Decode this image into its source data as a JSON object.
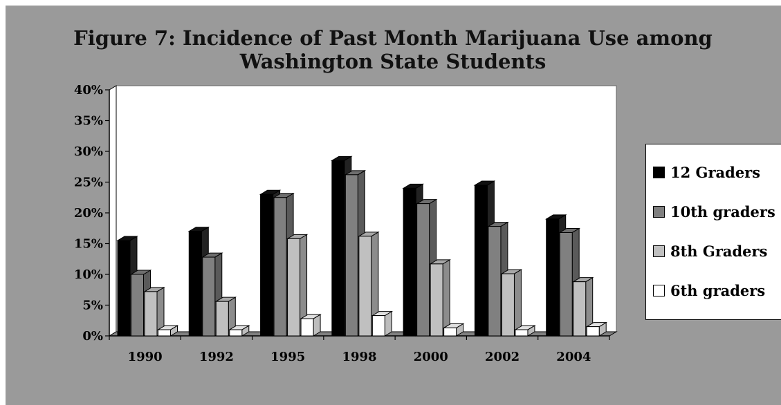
{
  "chart_data": {
    "type": "bar",
    "title": "Figure 7: Incidence of Past Month Marijuana Use among Washington State Students",
    "title_lines": [
      "Figure 7: Incidence of Past Month Marijuana Use among",
      "Washington State Students"
    ],
    "categories": [
      "1990",
      "1992",
      "1995",
      "1998",
      "2000",
      "2002",
      "2004"
    ],
    "series": [
      {
        "name": "12 Graders",
        "values": [
          15.5,
          17,
          23,
          28.5,
          24,
          24.5,
          19
        ],
        "color": "#000000"
      },
      {
        "name": "10th graders",
        "values": [
          10,
          12.8,
          22.5,
          26.2,
          21.5,
          17.8,
          16.8
        ],
        "color": "#808080"
      },
      {
        "name": "8th Graders",
        "values": [
          7.2,
          5.6,
          15.8,
          16.2,
          11.7,
          10.1,
          8.8
        ],
        "color": "#c0c0c0"
      },
      {
        "name": "6th graders",
        "values": [
          1,
          1,
          2.8,
          3.3,
          1.3,
          1,
          1.5
        ],
        "color": "#ffffff"
      }
    ],
    "ylim": [
      0,
      40
    ],
    "yticks": [
      "0%",
      "5%",
      "10%",
      "15%",
      "20%",
      "25%",
      "30%",
      "35%",
      "40%"
    ],
    "xlabel": "",
    "ylabel": "",
    "grid": false,
    "legend_position": "right",
    "style": "3d-column"
  }
}
